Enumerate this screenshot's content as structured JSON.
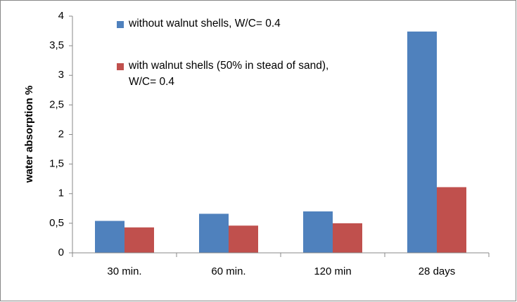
{
  "chart_data": {
    "type": "bar",
    "y_label": "water absorption %",
    "categories": [
      "30 min.",
      "60 min.",
      "120 min",
      "28 days"
    ],
    "series": [
      {
        "name": "without walnut shells, W/C= 0.4",
        "color": "#4f81bd",
        "values": [
          0.54,
          0.66,
          0.7,
          3.74
        ]
      },
      {
        "name": "with walnut shells (50% in stead of sand), W/C= 0.4",
        "color": "#c0504d",
        "values": [
          0.43,
          0.46,
          0.5,
          1.11
        ]
      }
    ],
    "ylim": [
      0,
      4
    ],
    "yticks": [
      0,
      {
        "value": 0.5,
        "label": "0,5"
      },
      1,
      {
        "value": 1.5,
        "label": "1,5"
      },
      2,
      {
        "value": 2.5,
        "label": "2,5"
      },
      3,
      {
        "value": 3.5,
        "label": "3,5"
      },
      4
    ],
    "grid": false,
    "legend": "top"
  }
}
